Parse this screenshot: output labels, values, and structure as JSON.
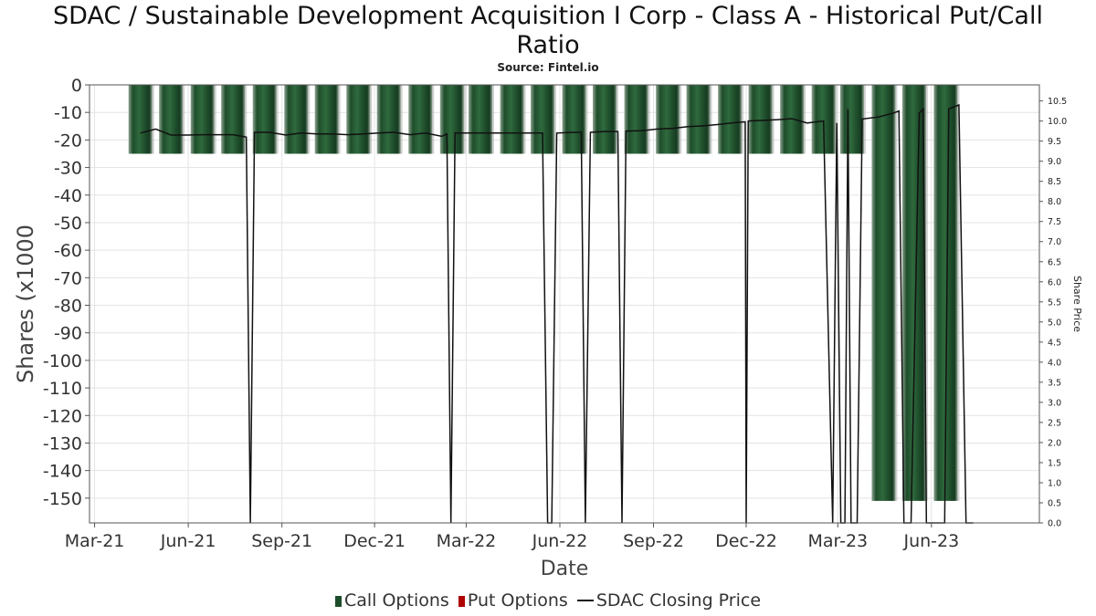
{
  "title_lines": [
    "SDAC / Sustainable Development Acquisition I Corp - Class A - Historical Put/Call",
    "Ratio"
  ],
  "subtitle": "Source: Fintel.io",
  "legend": {
    "call_label": "Call Options",
    "put_label": "Put Options",
    "price_label": "SDAC Closing Price",
    "call_color": "#1e4d2b",
    "put_color": "#b00000",
    "price_color": "#111111"
  },
  "chart_data": {
    "type": "bar",
    "xlabel": "Date",
    "ylabel": "Shares (x1000",
    "y2label": "Share Price",
    "grid": true,
    "legend_position": "bottom",
    "x_range": [
      "2021-02-24",
      "2023-09-15"
    ],
    "ylim": [
      -159,
      0
    ],
    "y2lim": [
      0,
      10.9
    ],
    "x_ticks": [
      {
        "date": "2021-03-01",
        "label": "Mar-21"
      },
      {
        "date": "2021-06-01",
        "label": "Jun-21"
      },
      {
        "date": "2021-09-01",
        "label": "Sep-21"
      },
      {
        "date": "2021-12-01",
        "label": "Dec-21"
      },
      {
        "date": "2022-03-01",
        "label": "Mar-22"
      },
      {
        "date": "2022-06-01",
        "label": "Jun-22"
      },
      {
        "date": "2022-09-01",
        "label": "Sep-22"
      },
      {
        "date": "2022-12-01",
        "label": "Dec-22"
      },
      {
        "date": "2023-03-01",
        "label": "Mar-23"
      },
      {
        "date": "2023-06-01",
        "label": "Jun-23"
      }
    ],
    "y_ticks": [
      "0",
      "-10",
      "-20",
      "-30",
      "-40",
      "-50",
      "-60",
      "-70",
      "-80",
      "-90",
      "-100",
      "-110",
      "-120",
      "-130",
      "-140",
      "-150"
    ],
    "y2_ticks": [
      "0.0",
      "0.5",
      "1.0",
      "1.5",
      "2.0",
      "2.5",
      "3.0",
      "3.5",
      "4.0",
      "4.5",
      "5.0",
      "5.5",
      "6.0",
      "6.5",
      "7.0",
      "7.5",
      "8.0",
      "8.5",
      "9.0",
      "9.5",
      "10.0",
      "10.5"
    ],
    "series": [
      {
        "name": "Call Options",
        "kind": "bar",
        "color": "#1e4d2b",
        "points": [
          {
            "x": "2021-04-15",
            "y": -25
          },
          {
            "x": "2021-05-15",
            "y": -25
          },
          {
            "x": "2021-06-15",
            "y": -25
          },
          {
            "x": "2021-07-15",
            "y": -25
          },
          {
            "x": "2021-08-15",
            "y": -25
          },
          {
            "x": "2021-09-15",
            "y": -25
          },
          {
            "x": "2021-10-15",
            "y": -25
          },
          {
            "x": "2021-11-15",
            "y": -25
          },
          {
            "x": "2021-12-15",
            "y": -25
          },
          {
            "x": "2022-01-15",
            "y": -25
          },
          {
            "x": "2022-02-15",
            "y": -25
          },
          {
            "x": "2022-03-15",
            "y": -25
          },
          {
            "x": "2022-04-15",
            "y": -25
          },
          {
            "x": "2022-05-15",
            "y": -25
          },
          {
            "x": "2022-06-15",
            "y": -25
          },
          {
            "x": "2022-07-15",
            "y": -25
          },
          {
            "x": "2022-08-15",
            "y": -25
          },
          {
            "x": "2022-09-15",
            "y": -25
          },
          {
            "x": "2022-10-15",
            "y": -25
          },
          {
            "x": "2022-11-15",
            "y": -25
          },
          {
            "x": "2022-12-15",
            "y": -25
          },
          {
            "x": "2023-01-15",
            "y": -25
          },
          {
            "x": "2023-02-15",
            "y": -25
          },
          {
            "x": "2023-03-15",
            "y": -25
          },
          {
            "x": "2023-04-15",
            "y": -151
          },
          {
            "x": "2023-05-15",
            "y": -151
          },
          {
            "x": "2023-06-15",
            "y": -151
          }
        ]
      },
      {
        "name": "Put Options",
        "kind": "bar",
        "color": "#b00000",
        "points": []
      },
      {
        "name": "SDAC Closing Price",
        "kind": "line",
        "color": "#111111",
        "points": [
          {
            "x": "2021-04-15",
            "y": 9.7
          },
          {
            "x": "2021-04-30",
            "y": 9.8
          },
          {
            "x": "2021-05-15",
            "y": 9.65
          },
          {
            "x": "2021-05-31",
            "y": 9.65
          },
          {
            "x": "2021-06-15",
            "y": 9.66
          },
          {
            "x": "2021-06-30",
            "y": 9.66
          },
          {
            "x": "2021-07-15",
            "y": 9.66
          },
          {
            "x": "2021-07-28",
            "y": 9.6
          },
          {
            "x": "2021-08-01",
            "y": 0
          },
          {
            "x": "2021-08-05",
            "y": 9.72
          },
          {
            "x": "2021-08-20",
            "y": 9.72
          },
          {
            "x": "2021-09-05",
            "y": 9.65
          },
          {
            "x": "2021-09-20",
            "y": 9.7
          },
          {
            "x": "2021-10-05",
            "y": 9.68
          },
          {
            "x": "2021-10-20",
            "y": 9.68
          },
          {
            "x": "2021-11-05",
            "y": 9.66
          },
          {
            "x": "2021-11-20",
            "y": 9.68
          },
          {
            "x": "2021-12-05",
            "y": 9.7
          },
          {
            "x": "2021-12-20",
            "y": 9.72
          },
          {
            "x": "2022-01-05",
            "y": 9.66
          },
          {
            "x": "2022-01-20",
            "y": 9.7
          },
          {
            "x": "2022-02-05",
            "y": 9.62
          },
          {
            "x": "2022-02-10",
            "y": 9.68
          },
          {
            "x": "2022-02-14",
            "y": 0
          },
          {
            "x": "2022-02-18",
            "y": 9.7
          },
          {
            "x": "2022-03-05",
            "y": 9.7
          },
          {
            "x": "2022-03-20",
            "y": 9.7
          },
          {
            "x": "2022-04-05",
            "y": 9.7
          },
          {
            "x": "2022-04-20",
            "y": 9.7
          },
          {
            "x": "2022-05-15",
            "y": 9.7
          },
          {
            "x": "2022-05-20",
            "y": 0
          },
          {
            "x": "2022-05-24",
            "y": 0
          },
          {
            "x": "2022-05-29",
            "y": 9.7
          },
          {
            "x": "2022-06-15",
            "y": 9.72
          },
          {
            "x": "2022-06-22",
            "y": 9.72
          },
          {
            "x": "2022-06-26",
            "y": 0
          },
          {
            "x": "2022-07-01",
            "y": 9.72
          },
          {
            "x": "2022-07-15",
            "y": 9.74
          },
          {
            "x": "2022-07-28",
            "y": 9.74
          },
          {
            "x": "2022-08-01",
            "y": 0
          },
          {
            "x": "2022-08-05",
            "y": 9.75
          },
          {
            "x": "2022-08-20",
            "y": 9.76
          },
          {
            "x": "2022-09-05",
            "y": 9.8
          },
          {
            "x": "2022-09-20",
            "y": 9.82
          },
          {
            "x": "2022-10-05",
            "y": 9.86
          },
          {
            "x": "2022-10-20",
            "y": 9.88
          },
          {
            "x": "2022-11-05",
            "y": 9.92
          },
          {
            "x": "2022-11-20",
            "y": 9.96
          },
          {
            "x": "2022-11-30",
            "y": 9.98
          },
          {
            "x": "2022-12-01",
            "y": 0
          },
          {
            "x": "2022-12-03",
            "y": 10.0
          },
          {
            "x": "2022-12-20",
            "y": 10.02
          },
          {
            "x": "2023-01-05",
            "y": 10.04
          },
          {
            "x": "2023-01-15",
            "y": 10.06
          },
          {
            "x": "2023-01-30",
            "y": 9.95
          },
          {
            "x": "2023-02-15",
            "y": 10.0
          },
          {
            "x": "2023-02-24",
            "y": 0
          },
          {
            "x": "2023-02-28",
            "y": 9.95
          },
          {
            "x": "2023-03-04",
            "y": 0
          },
          {
            "x": "2023-03-08",
            "y": 0
          },
          {
            "x": "2023-03-11",
            "y": 10.3
          },
          {
            "x": "2023-03-14",
            "y": 0
          },
          {
            "x": "2023-03-20",
            "y": 0
          },
          {
            "x": "2023-03-25",
            "y": 10.05
          },
          {
            "x": "2023-04-10",
            "y": 10.1
          },
          {
            "x": "2023-04-25",
            "y": 10.2
          },
          {
            "x": "2023-04-30",
            "y": 10.25
          },
          {
            "x": "2023-05-05",
            "y": 0
          },
          {
            "x": "2023-05-12",
            "y": 0
          },
          {
            "x": "2023-05-20",
            "y": 10.2
          },
          {
            "x": "2023-05-24",
            "y": 10.3
          },
          {
            "x": "2023-05-27",
            "y": 0
          },
          {
            "x": "2023-06-05",
            "y": 0
          },
          {
            "x": "2023-06-14",
            "y": 0
          },
          {
            "x": "2023-06-18",
            "y": 10.3
          },
          {
            "x": "2023-06-28",
            "y": 10.4
          },
          {
            "x": "2023-07-05",
            "y": 0
          },
          {
            "x": "2023-07-12",
            "y": 0
          }
        ]
      }
    ]
  }
}
